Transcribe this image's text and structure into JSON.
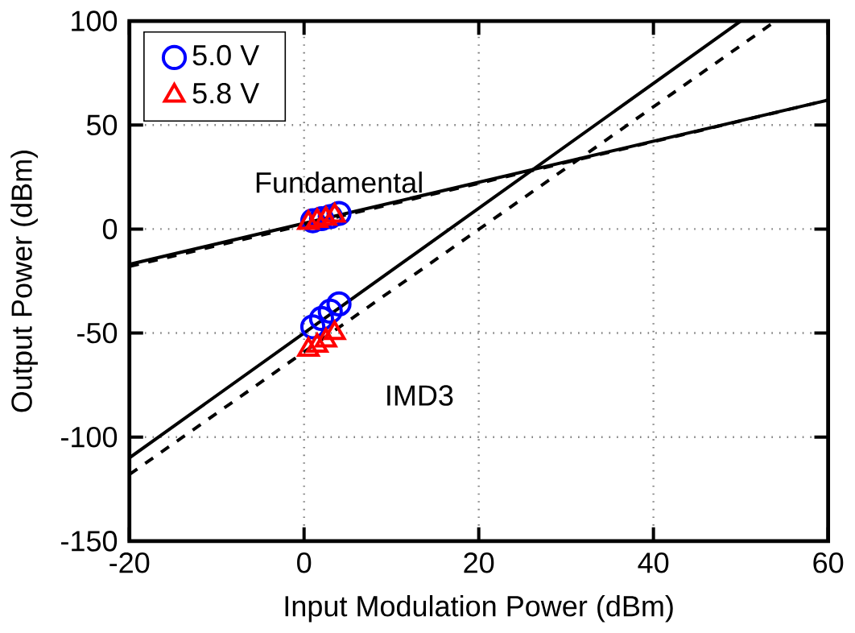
{
  "chart_data": {
    "type": "line",
    "xlabel": "Input Modulation Power (dBm)",
    "ylabel": "Output Power (dBm)",
    "xlim": [
      -20,
      60
    ],
    "ylim": [
      -150,
      100
    ],
    "xticks": [
      -20,
      0,
      20,
      40,
      60
    ],
    "yticks": [
      -150,
      -100,
      -50,
      0,
      50,
      100
    ],
    "grid": true,
    "legend": "top left",
    "annotations": [
      "Fundamental",
      "IMD3"
    ],
    "series": [
      {
        "color": "#000000",
        "line_style": "solid",
        "marker": "none",
        "x": [
          -20,
          60
        ],
        "values": [
          -17,
          62
        ]
      },
      {
        "color": "#000000",
        "line_style": "dashed",
        "marker": "none",
        "x": [
          -20,
          60
        ],
        "values": [
          -18,
          62
        ]
      },
      {
        "color": "#000000",
        "line_style": "solid",
        "marker": "none",
        "x": [
          -20,
          50
        ],
        "values": [
          -110,
          100
        ]
      },
      {
        "color": "#000000",
        "line_style": "dashed",
        "marker": "none",
        "x": [
          -20,
          54
        ],
        "values": [
          -118,
          100
        ]
      },
      {
        "type": "scatter",
        "name": "5.0 V",
        "color": "#0000ff",
        "marker": "circle",
        "x": [
          1,
          2,
          3,
          4,
          1,
          2,
          3,
          4
        ],
        "values": [
          4,
          5,
          6,
          7.5,
          -47,
          -43,
          -39.5,
          -36
        ]
      },
      {
        "type": "scatter",
        "name": "5.8 V",
        "color": "#ff0000",
        "marker": "triangle",
        "x": [
          0.5,
          1.5,
          2.5,
          3.5,
          0.5,
          1.5,
          2.5,
          3.5
        ],
        "values": [
          3,
          4,
          5,
          6.5,
          -58,
          -56,
          -53.5,
          -50
        ]
      }
    ]
  }
}
